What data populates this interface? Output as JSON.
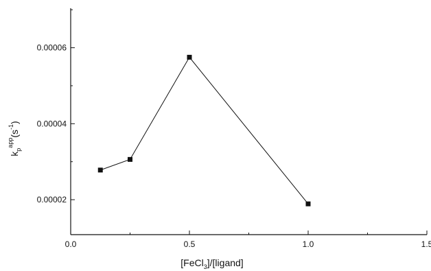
{
  "chart_data": {
    "type": "line",
    "x_ticks": [
      "0.0",
      "0.5",
      "1.0",
      "1.5"
    ],
    "y_ticks": [
      "0.00002",
      "0.00004",
      "0.00006"
    ],
    "xlim": [
      0.0,
      1.5
    ],
    "ylim": [
      1.08e-05,
      7.04e-05
    ],
    "xlabel": {
      "main": "[FeCl",
      "sub": "3",
      "rest": "]/[ligand]"
    },
    "ylabel": {
      "main": "k",
      "sub": "p",
      "sup": "app",
      "paren_open": "(s",
      "sup2": "-1",
      "paren_close": ")"
    },
    "series": [
      {
        "marker": "square",
        "color": "#111111",
        "x": [
          0.125,
          0.25,
          0.5,
          1.0
        ],
        "y": [
          2.78e-05,
          3.06e-05,
          5.75e-05,
          1.89e-05
        ]
      }
    ],
    "grid": false,
    "legend": "none"
  }
}
